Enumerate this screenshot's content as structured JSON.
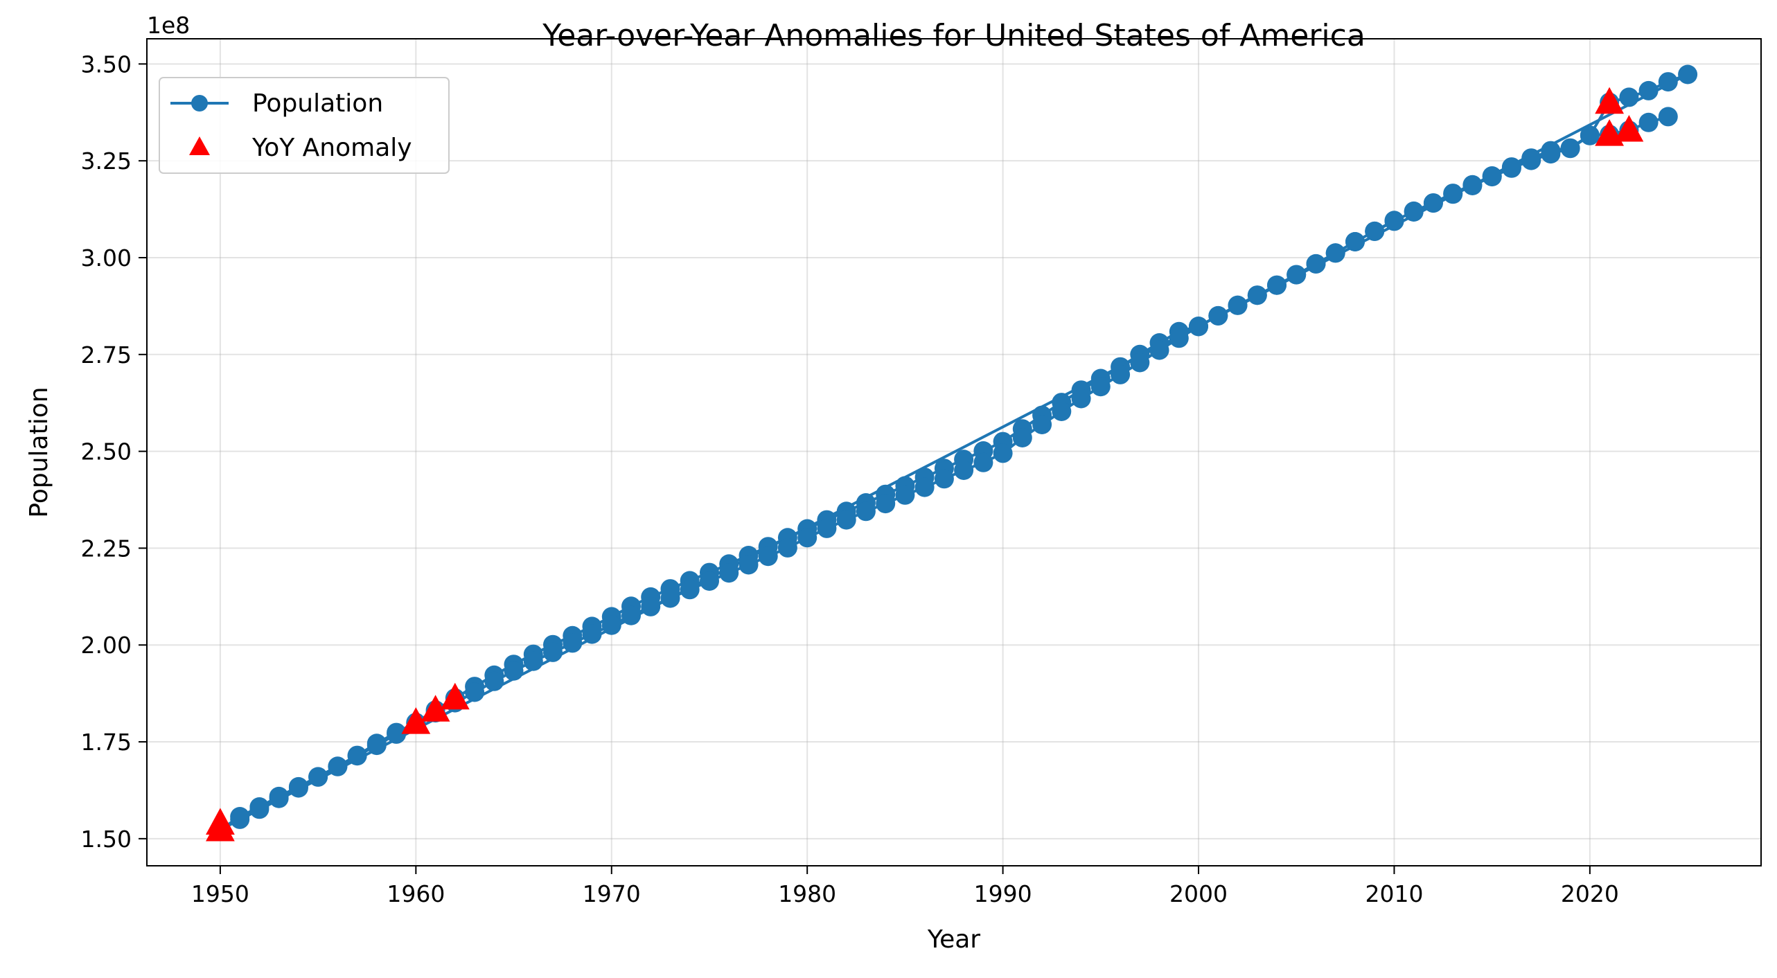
{
  "chart_data": {
    "type": "line",
    "title": "Year-over-Year Anomalies for United States of America",
    "xlabel": "Year",
    "ylabel": "Population",
    "y_offset_label": "1e8",
    "y_scale": 100000000,
    "xlim": [
      1946.25,
      2028.75
    ],
    "ylim": [
      143000000,
      356500000
    ],
    "x_ticks": [
      1950,
      1960,
      1970,
      1980,
      1990,
      2000,
      2010,
      2020
    ],
    "x_tick_labels": [
      "1950",
      "1960",
      "1970",
      "1980",
      "1990",
      "2000",
      "2010",
      "2020"
    ],
    "y_ticks": [
      150000000,
      175000000,
      200000000,
      225000000,
      250000000,
      275000000,
      300000000,
      325000000,
      350000000
    ],
    "y_tick_labels": [
      "1.50",
      "1.75",
      "2.00",
      "2.25",
      "2.50",
      "2.75",
      "3.00",
      "3.25",
      "3.50"
    ],
    "grid": true,
    "legend_position": "top-left",
    "series": [
      {
        "name": "Population",
        "type": "line-marker",
        "color": "#1f77b4",
        "x": [
          1950,
          1951,
          1952,
          1953,
          1954,
          1955,
          1956,
          1957,
          1958,
          1959,
          1960,
          1961,
          1962,
          1963,
          1964,
          1965,
          1966,
          1967,
          1968,
          1969,
          1970,
          1971,
          1972,
          1973,
          1974,
          1975,
          1976,
          1977,
          1978,
          1979,
          1980,
          1981,
          1982,
          1983,
          1984,
          1985,
          1986,
          1987,
          1988,
          1989,
          1990,
          1991,
          1992,
          1993,
          1994,
          1995,
          1996,
          1997,
          1998,
          1999,
          2000,
          2001,
          2002,
          2003,
          2004,
          2005,
          2006,
          2007,
          2008,
          2009,
          2010,
          2011,
          2012,
          2013,
          2014,
          2015,
          2016,
          2017,
          2018,
          2019,
          2020,
          2021,
          2022,
          2023,
          2024,
          2025,
          1950,
          1951,
          1952,
          1953,
          1954,
          1955,
          1956,
          1957,
          1958,
          1959,
          1960,
          1961,
          1962,
          1963,
          1964,
          1965,
          1966,
          1967,
          1968,
          1969,
          1970,
          1971,
          1972,
          1973,
          1974,
          1975,
          1976,
          1977,
          1978,
          1979,
          1980,
          1981,
          1982,
          1983,
          1984,
          1985,
          1986,
          1987,
          1988,
          1989,
          1990,
          1991,
          1992,
          1993,
          1994,
          1995,
          1996,
          1997,
          1998,
          1999,
          2000,
          2001,
          2002,
          2003,
          2004,
          2005,
          2006,
          2007,
          2008,
          2009,
          2010,
          2011,
          2012,
          2013,
          2014,
          2015,
          2016,
          2017,
          2018,
          2019,
          2020,
          2021,
          2022,
          2023,
          2024
        ],
        "y": [
          152300000,
          155700000,
          158200000,
          160900000,
          163400000,
          166000000,
          168700000,
          171500000,
          174600000,
          177400000,
          180000000,
          183200000,
          186300000,
          189300000,
          192200000,
          195000000,
          197600000,
          200100000,
          202400000,
          204800000,
          207300000,
          210000000,
          212400000,
          214500000,
          216600000,
          218700000,
          220900000,
          223100000,
          225400000,
          227700000,
          230000000,
          232300000,
          234500000,
          236700000,
          238900000,
          241100000,
          243300000,
          245600000,
          247900000,
          250100000,
          252500000,
          255800000,
          259300000,
          262600000,
          265800000,
          268800000,
          271800000,
          275000000,
          278000000,
          280900000,
          282300000,
          285000000,
          287700000,
          290300000,
          292900000,
          295600000,
          298400000,
          301200000,
          304100000,
          306800000,
          309600000,
          311800000,
          314100000,
          316400000,
          318600000,
          320900000,
          323100000,
          325100000,
          326800000,
          328200000,
          331500000,
          340100000,
          341400000,
          343100000,
          345400000,
          347300000,
          152300000,
          155000000,
          157600000,
          160400000,
          163100000,
          165900000,
          168600000,
          171400000,
          174100000,
          177000000,
          179800000,
          182500000,
          185100000,
          187800000,
          190600000,
          193300000,
          195800000,
          198100000,
          200500000,
          202800000,
          205100000,
          207600000,
          209900000,
          212100000,
          214300000,
          216500000,
          218600000,
          220700000,
          222900000,
          225100000,
          227700000,
          230100000,
          232300000,
          234500000,
          236500000,
          238700000,
          240700000,
          242900000,
          245100000,
          247100000,
          249500000,
          253500000,
          256900000,
          260300000,
          263600000,
          266700000,
          269800000,
          272900000,
          276100000,
          279200000,
          282200000,
          285000000,
          287700000,
          290300000,
          292900000,
          295600000,
          298400000,
          301200000,
          304100000,
          306800000,
          309400000,
          312000000,
          314100000,
          316600000,
          318800000,
          321100000,
          323400000,
          325700000,
          327600000,
          328300000,
          331600000,
          331800000,
          332900000,
          334900000,
          336400000
        ]
      },
      {
        "name": "YoY Anomaly",
        "type": "scatter",
        "marker": "triangle",
        "color": "#ff0000",
        "x": [
          1950,
          1960,
          1961,
          1962,
          2021,
          2021,
          2022,
          1950
        ],
        "y": [
          154000000,
          180000000,
          183200000,
          186300000,
          340100000,
          331800000,
          332900000,
          152300000
        ]
      }
    ]
  }
}
